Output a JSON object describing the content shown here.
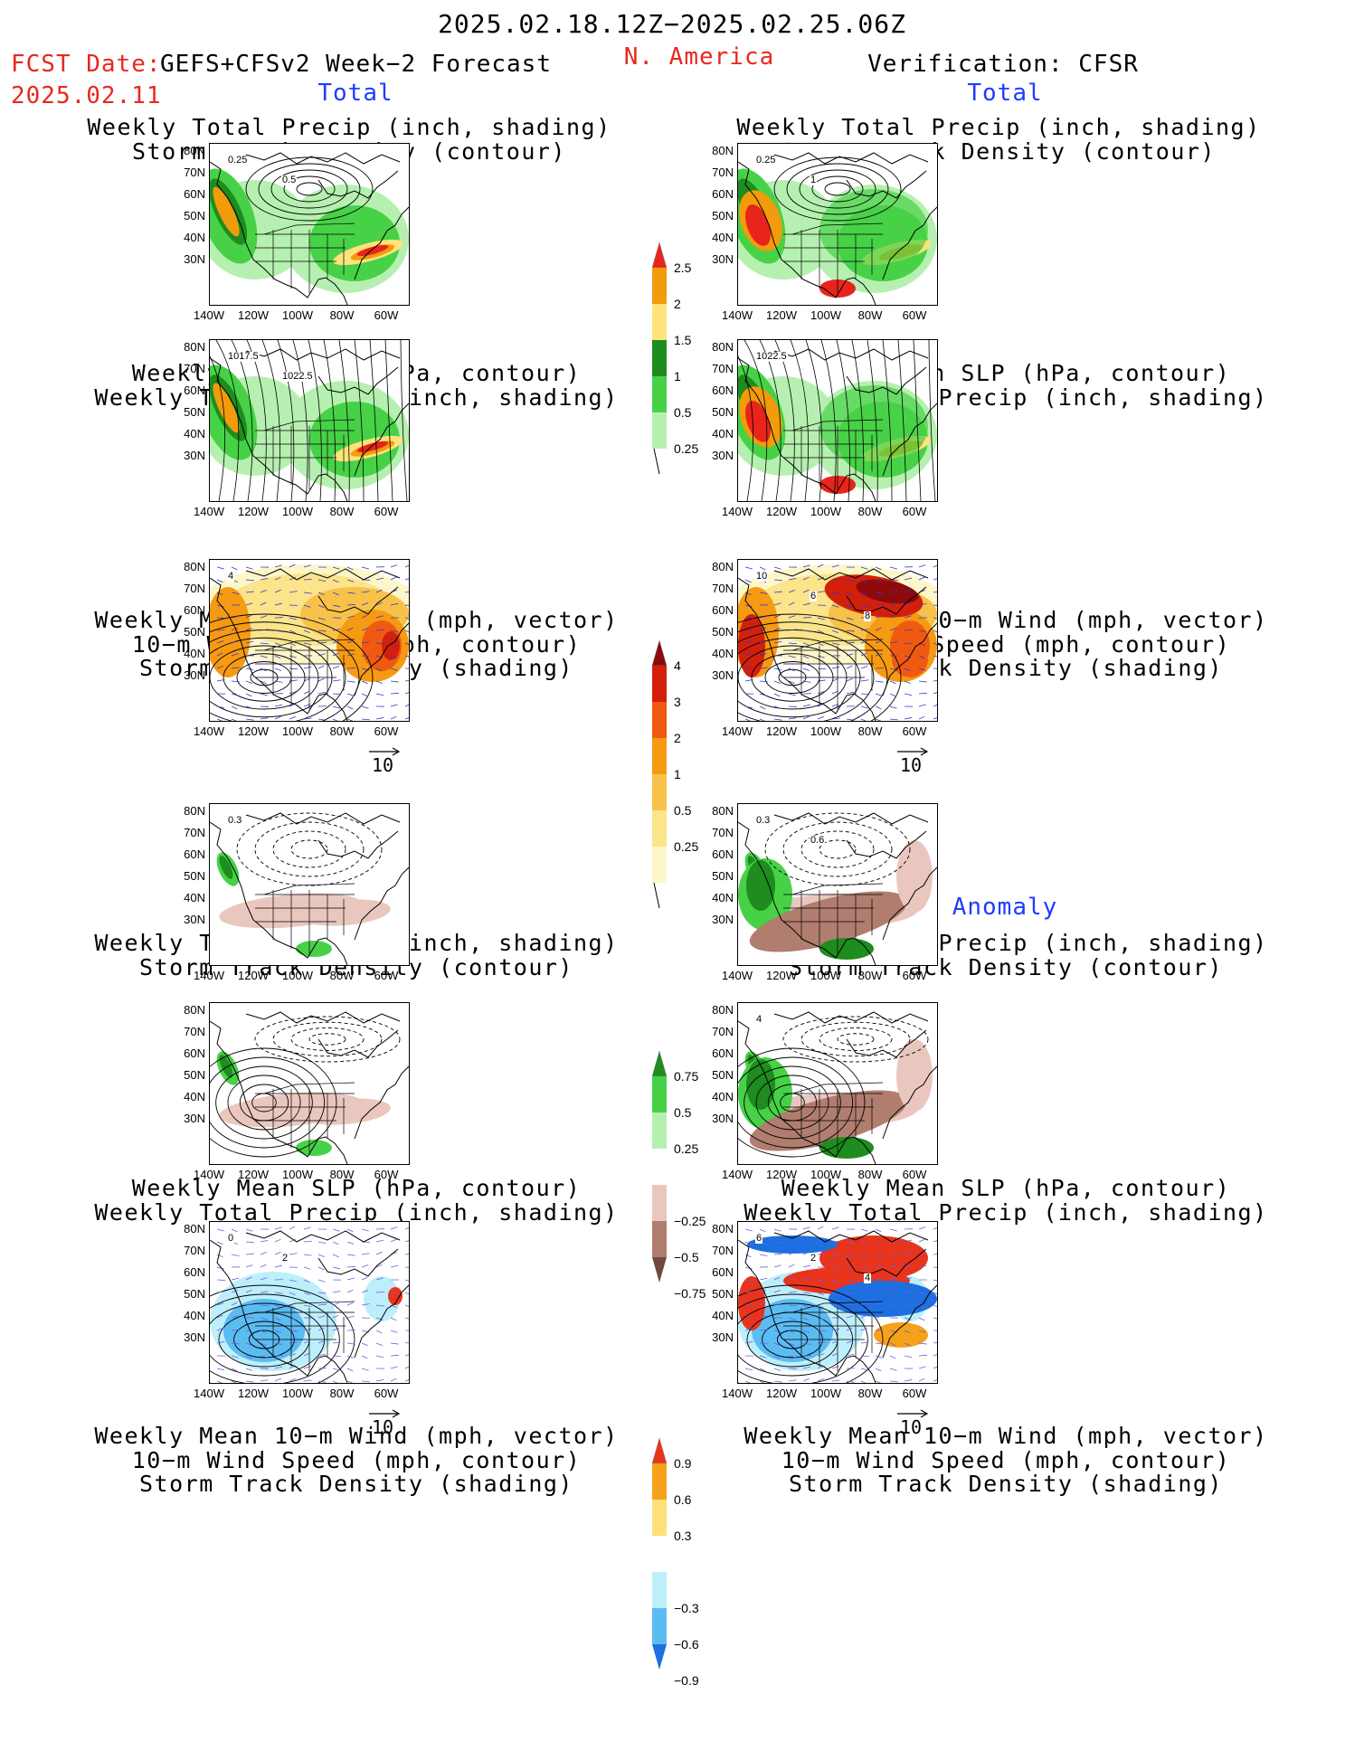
{
  "header": {
    "period": "2025.02.18.12Z−2025.02.25.06Z",
    "fcst_label": "FCST Date: ",
    "fcst_model": "GEFS+CFSv2 Week−2 Forecast",
    "fcst_date": "2025.02.11",
    "region": "N. America",
    "verification": "Verification: CFSR"
  },
  "sections": {
    "total": "Total",
    "anomaly": "Anomaly"
  },
  "titles": {
    "precip_storm": "Weekly Total Precip (inch, shading)\nStorm Track Density (contour)",
    "slp_precip": "Weekly Mean SLP (hPa, contour)\nWeekly Total Precip (inch, shading)",
    "wind": "Weekly Mean 10−m Wind (mph, vector)\n10−m Wind Speed (mph, contour)\nStorm Track Density (shading)"
  },
  "axes": {
    "lat": [
      "80N",
      "70N",
      "60N",
      "50N",
      "40N",
      "30N"
    ],
    "lon": [
      "140W",
      "120W",
      "100W",
      "80W",
      "60W"
    ]
  },
  "vector_ref": "10",
  "map_labels": {
    "fcst_precip_storm": [
      "0.25",
      "0.5"
    ],
    "obs_precip_storm": [
      "0.25",
      "1"
    ],
    "fcst_slp": [
      "1017.5",
      "1022.5"
    ],
    "obs_slp": [
      "1022.5"
    ],
    "fcst_wind": [
      "4"
    ],
    "obs_wind": [
      "10",
      "6",
      "8"
    ],
    "fcst_anom_storm": [
      "0.3"
    ],
    "obs_anom_storm": [
      "0.3",
      "0.6"
    ],
    "obs_anom_slp": [
      "4"
    ],
    "fcst_anom_wind": [
      "0",
      "2"
    ],
    "obs_anom_wind": [
      "6",
      "2",
      "4"
    ]
  },
  "colorbars": {
    "precip_total": {
      "labels": [
        "2.5",
        "2",
        "1.5",
        "1",
        "0.5",
        "0.25"
      ],
      "colors": [
        "#e8241c",
        "#f29b0c",
        "#ffe27a",
        "#1e8c1e",
        "#47d147",
        "#b6f0b0"
      ]
    },
    "storm_total": {
      "labels": [
        "4",
        "3",
        "2",
        "1",
        "0.5",
        "0.25"
      ],
      "colors": [
        "#8c0a0a",
        "#d2200c",
        "#f05a10",
        "#f59a12",
        "#f8c24a",
        "#fbe48a",
        "#fdf6c8"
      ]
    },
    "precip_anom": {
      "labels": [
        "0.75",
        "0.5",
        "0.25",
        "−0.25",
        "−0.5",
        "−0.75"
      ],
      "colors": [
        "#1e8c1e",
        "#47d147",
        "#b6f0b0",
        "#ffffff",
        "#e9c7bf",
        "#b07d6f",
        "#6e4a3f"
      ]
    },
    "wind_anom": {
      "labels": [
        "0.9",
        "0.6",
        "0.3",
        "−0.3",
        "−0.6",
        "−0.9"
      ],
      "colors": [
        "#e8341c",
        "#f5a21a",
        "#fde07a",
        "#ffffff",
        "#bdeffa",
        "#5bbcf2",
        "#1e6fe0"
      ]
    }
  }
}
